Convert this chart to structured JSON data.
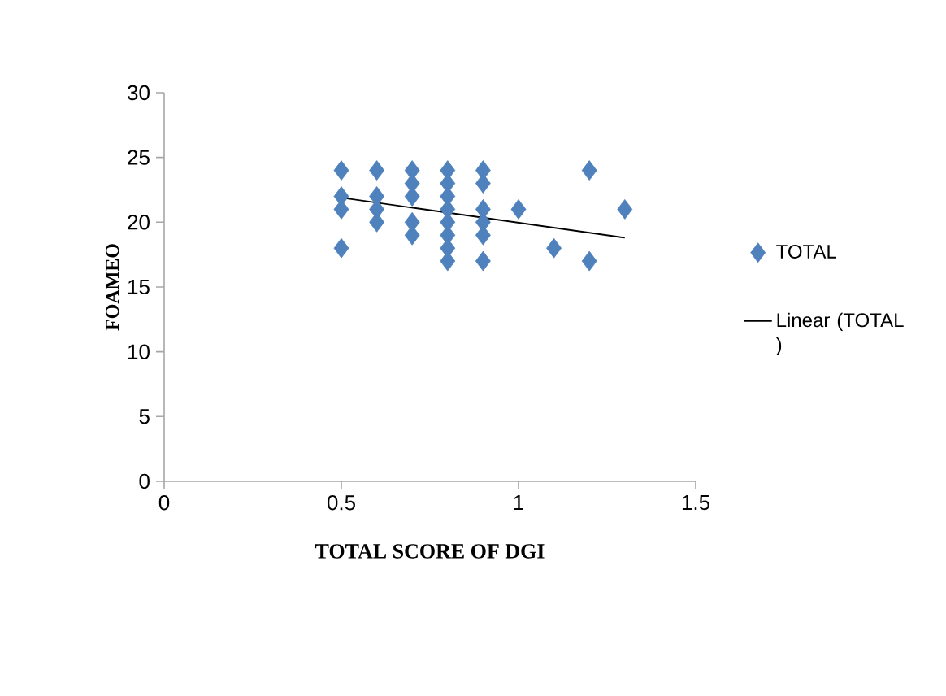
{
  "chart_data": {
    "type": "scatter",
    "xlabel": "TOTAL SCORE OF DGI",
    "ylabel": "FOAMEO",
    "xlim": [
      0,
      1.5
    ],
    "xticks": [
      0,
      0.5,
      1,
      1.5
    ],
    "ylim": [
      0,
      30
    ],
    "yticks": [
      0,
      5,
      10,
      15,
      20,
      25,
      30
    ],
    "legend": "right",
    "grid": false,
    "series": [
      {
        "name": "TOTAL",
        "marker": "diamond",
        "color": "#4f81bd",
        "x": [
          0.5,
          0.5,
          0.5,
          0.5,
          0.6,
          0.6,
          0.6,
          0.6,
          0.7,
          0.7,
          0.7,
          0.7,
          0.7,
          0.8,
          0.8,
          0.8,
          0.8,
          0.8,
          0.8,
          0.8,
          0.8,
          0.9,
          0.9,
          0.9,
          0.9,
          0.9,
          0.9,
          1.0,
          1.1,
          1.2,
          1.2,
          1.3
        ],
        "values": [
          24,
          22,
          21,
          18,
          24,
          22,
          21,
          20,
          24,
          23,
          22,
          20,
          19,
          24,
          23,
          22,
          21,
          20,
          19,
          18,
          17,
          24,
          23,
          21,
          20,
          19,
          17,
          21,
          18,
          24,
          17,
          21
        ]
      },
      {
        "name": "Linear (TOTAL )",
        "type": "line",
        "marker": "none",
        "color": "#000000",
        "x": [
          0.5,
          1.3
        ],
        "values": [
          21.9,
          18.8
        ]
      }
    ]
  }
}
